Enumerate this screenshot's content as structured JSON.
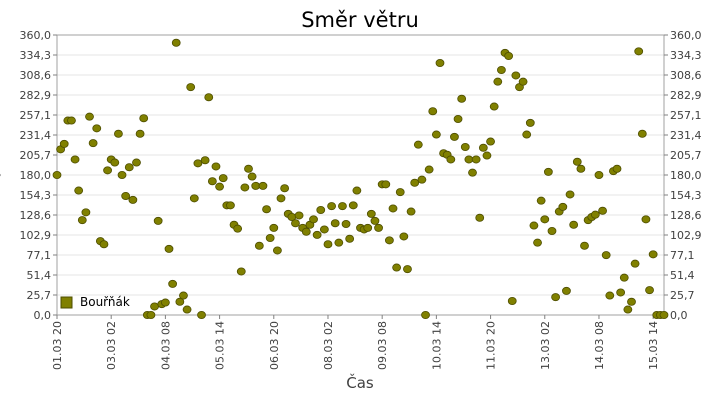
{
  "chart_data": {
    "type": "scatter",
    "title": "Směr větru",
    "xlabel": "Čas",
    "ylabel": "°",
    "ylim": [
      0,
      360
    ],
    "y_ticks": [
      "0,0",
      "25,7",
      "51,4",
      "77,1",
      "102,9",
      "128,6",
      "154,3",
      "180,0",
      "205,7",
      "231,4",
      "257,1",
      "282,9",
      "308,6",
      "334,3",
      "360,0"
    ],
    "x_range": [
      "01.03 20:00",
      "15.03 20:00"
    ],
    "x_ticks": [
      "01.03 20",
      "03.03 02",
      "04.03 08",
      "05.03 14",
      "06.03 20",
      "08.03 02",
      "09.03 08",
      "10.03 14",
      "11.03 20",
      "13.03 02",
      "14.03 08",
      "15.03 14"
    ],
    "grid": true,
    "legend_position": "bottom-left",
    "series": [
      {
        "name": "Bouřňák",
        "color": "#808000",
        "points": [
          {
            "x": "01.03 20:00",
            "y": 180
          },
          {
            "x": "01.03 22:00",
            "y": 213
          },
          {
            "x": "02.03 00:00",
            "y": 220
          },
          {
            "x": "02.03 02:00",
            "y": 250
          },
          {
            "x": "02.03 04:00",
            "y": 250
          },
          {
            "x": "02.03 06:00",
            "y": 200
          },
          {
            "x": "02.03 08:00",
            "y": 160
          },
          {
            "x": "02.03 10:00",
            "y": 122
          },
          {
            "x": "02.03 12:00",
            "y": 132
          },
          {
            "x": "02.03 14:00",
            "y": 255
          },
          {
            "x": "02.03 16:00",
            "y": 221
          },
          {
            "x": "02.03 18:00",
            "y": 240
          },
          {
            "x": "02.03 20:00",
            "y": 95
          },
          {
            "x": "02.03 22:00",
            "y": 91
          },
          {
            "x": "03.03 00:00",
            "y": 186
          },
          {
            "x": "03.03 02:00",
            "y": 200
          },
          {
            "x": "03.03 04:00",
            "y": 196
          },
          {
            "x": "03.03 06:00",
            "y": 233
          },
          {
            "x": "03.03 08:00",
            "y": 180
          },
          {
            "x": "03.03 10:00",
            "y": 153
          },
          {
            "x": "03.03 12:00",
            "y": 190
          },
          {
            "x": "03.03 14:00",
            "y": 148
          },
          {
            "x": "03.03 16:00",
            "y": 196
          },
          {
            "x": "03.03 18:00",
            "y": 233
          },
          {
            "x": "03.03 20:00",
            "y": 253
          },
          {
            "x": "03.03 22:00",
            "y": 0
          },
          {
            "x": "04.03 00:00",
            "y": 0
          },
          {
            "x": "04.03 02:00",
            "y": 11
          },
          {
            "x": "04.03 04:00",
            "y": 121
          },
          {
            "x": "04.03 06:00",
            "y": 14
          },
          {
            "x": "04.03 08:00",
            "y": 16
          },
          {
            "x": "04.03 10:00",
            "y": 85
          },
          {
            "x": "04.03 12:00",
            "y": 40
          },
          {
            "x": "04.03 14:00",
            "y": 350
          },
          {
            "x": "04.03 16:00",
            "y": 17
          },
          {
            "x": "04.03 18:00",
            "y": 25
          },
          {
            "x": "04.03 20:00",
            "y": 7
          },
          {
            "x": "04.03 22:00",
            "y": 293
          },
          {
            "x": "05.03 00:00",
            "y": 150
          },
          {
            "x": "05.03 02:00",
            "y": 195
          },
          {
            "x": "05.03 04:00",
            "y": 0
          },
          {
            "x": "05.03 06:00",
            "y": 199
          },
          {
            "x": "05.03 08:00",
            "y": 280
          },
          {
            "x": "05.03 10:00",
            "y": 172
          },
          {
            "x": "05.03 12:00",
            "y": 191
          },
          {
            "x": "05.03 14:00",
            "y": 165
          },
          {
            "x": "05.03 16:00",
            "y": 176
          },
          {
            "x": "05.03 18:00",
            "y": 141
          },
          {
            "x": "05.03 20:00",
            "y": 141
          },
          {
            "x": "05.03 22:00",
            "y": 116
          },
          {
            "x": "06.03 00:00",
            "y": 111
          },
          {
            "x": "06.03 02:00",
            "y": 56
          },
          {
            "x": "06.03 04:00",
            "y": 164
          },
          {
            "x": "06.03 06:00",
            "y": 188
          },
          {
            "x": "06.03 08:00",
            "y": 178
          },
          {
            "x": "06.03 10:00",
            "y": 166
          },
          {
            "x": "06.03 12:00",
            "y": 89
          },
          {
            "x": "06.03 14:00",
            "y": 166
          },
          {
            "x": "06.03 16:00",
            "y": 136
          },
          {
            "x": "06.03 18:00",
            "y": 99
          },
          {
            "x": "06.03 20:00",
            "y": 112
          },
          {
            "x": "06.03 22:00",
            "y": 83
          },
          {
            "x": "07.03 00:00",
            "y": 150
          },
          {
            "x": "07.03 02:00",
            "y": 163
          },
          {
            "x": "07.03 04:00",
            "y": 130
          },
          {
            "x": "07.03 06:00",
            "y": 126
          },
          {
            "x": "07.03 08:00",
            "y": 118
          },
          {
            "x": "07.03 10:00",
            "y": 128
          },
          {
            "x": "07.03 12:00",
            "y": 112
          },
          {
            "x": "07.03 14:00",
            "y": 107
          },
          {
            "x": "07.03 16:00",
            "y": 116
          },
          {
            "x": "07.03 18:00",
            "y": 123
          },
          {
            "x": "07.03 20:00",
            "y": 103
          },
          {
            "x": "07.03 22:00",
            "y": 135
          },
          {
            "x": "08.03 00:00",
            "y": 110
          },
          {
            "x": "08.03 02:00",
            "y": 91
          },
          {
            "x": "08.03 04:00",
            "y": 140
          },
          {
            "x": "08.03 06:00",
            "y": 118
          },
          {
            "x": "08.03 08:00",
            "y": 93
          },
          {
            "x": "08.03 10:00",
            "y": 140
          },
          {
            "x": "08.03 12:00",
            "y": 117
          },
          {
            "x": "08.03 14:00",
            "y": 98
          },
          {
            "x": "08.03 16:00",
            "y": 141
          },
          {
            "x": "08.03 18:00",
            "y": 160
          },
          {
            "x": "08.03 20:00",
            "y": 112
          },
          {
            "x": "08.03 22:00",
            "y": 110
          },
          {
            "x": "09.03 00:00",
            "y": 112
          },
          {
            "x": "09.03 02:00",
            "y": 130
          },
          {
            "x": "09.03 04:00",
            "y": 121
          },
          {
            "x": "09.03 06:00",
            "y": 112
          },
          {
            "x": "09.03 08:00",
            "y": 168
          },
          {
            "x": "09.03 10:00",
            "y": 168
          },
          {
            "x": "09.03 12:00",
            "y": 96
          },
          {
            "x": "09.03 14:00",
            "y": 137
          },
          {
            "x": "09.03 16:00",
            "y": 61
          },
          {
            "x": "09.03 18:00",
            "y": 158
          },
          {
            "x": "09.03 20:00",
            "y": 101
          },
          {
            "x": "09.03 22:00",
            "y": 59
          },
          {
            "x": "10.03 00:00",
            "y": 133
          },
          {
            "x": "10.03 02:00",
            "y": 170
          },
          {
            "x": "10.03 04:00",
            "y": 219
          },
          {
            "x": "10.03 06:00",
            "y": 174
          },
          {
            "x": "10.03 08:00",
            "y": 0
          },
          {
            "x": "10.03 10:00",
            "y": 187
          },
          {
            "x": "10.03 12:00",
            "y": 262
          },
          {
            "x": "10.03 14:00",
            "y": 232
          },
          {
            "x": "10.03 16:00",
            "y": 324
          },
          {
            "x": "10.03 18:00",
            "y": 208
          },
          {
            "x": "10.03 20:00",
            "y": 206
          },
          {
            "x": "10.03 22:00",
            "y": 200
          },
          {
            "x": "11.03 00:00",
            "y": 229
          },
          {
            "x": "11.03 02:00",
            "y": 252
          },
          {
            "x": "11.03 04:00",
            "y": 278
          },
          {
            "x": "11.03 06:00",
            "y": 216
          },
          {
            "x": "11.03 08:00",
            "y": 200
          },
          {
            "x": "11.03 10:00",
            "y": 183
          },
          {
            "x": "11.03 12:00",
            "y": 200
          },
          {
            "x": "11.03 14:00",
            "y": 125
          },
          {
            "x": "11.03 16:00",
            "y": 215
          },
          {
            "x": "11.03 18:00",
            "y": 205
          },
          {
            "x": "11.03 20:00",
            "y": 223
          },
          {
            "x": "11.03 22:00",
            "y": 268
          },
          {
            "x": "12.03 00:00",
            "y": 300
          },
          {
            "x": "12.03 02:00",
            "y": 315
          },
          {
            "x": "12.03 04:00",
            "y": 337
          },
          {
            "x": "12.03 06:00",
            "y": 333
          },
          {
            "x": "12.03 08:00",
            "y": 18
          },
          {
            "x": "12.03 10:00",
            "y": 308
          },
          {
            "x": "12.03 12:00",
            "y": 293
          },
          {
            "x": "12.03 14:00",
            "y": 300
          },
          {
            "x": "12.03 16:00",
            "y": 232
          },
          {
            "x": "12.03 18:00",
            "y": 247
          },
          {
            "x": "12.03 20:00",
            "y": 115
          },
          {
            "x": "12.03 22:00",
            "y": 93
          },
          {
            "x": "13.03 00:00",
            "y": 147
          },
          {
            "x": "13.03 02:00",
            "y": 123
          },
          {
            "x": "13.03 04:00",
            "y": 184
          },
          {
            "x": "13.03 06:00",
            "y": 108
          },
          {
            "x": "13.03 08:00",
            "y": 23
          },
          {
            "x": "13.03 10:00",
            "y": 133
          },
          {
            "x": "13.03 12:00",
            "y": 139
          },
          {
            "x": "13.03 14:00",
            "y": 31
          },
          {
            "x": "13.03 16:00",
            "y": 155
          },
          {
            "x": "13.03 18:00",
            "y": 116
          },
          {
            "x": "13.03 20:00",
            "y": 197
          },
          {
            "x": "13.03 22:00",
            "y": 188
          },
          {
            "x": "14.03 00:00",
            "y": 89
          },
          {
            "x": "14.03 02:00",
            "y": 122
          },
          {
            "x": "14.03 04:00",
            "y": 126
          },
          {
            "x": "14.03 06:00",
            "y": 129
          },
          {
            "x": "14.03 08:00",
            "y": 180
          },
          {
            "x": "14.03 10:00",
            "y": 134
          },
          {
            "x": "14.03 12:00",
            "y": 77
          },
          {
            "x": "14.03 14:00",
            "y": 25
          },
          {
            "x": "14.03 16:00",
            "y": 185
          },
          {
            "x": "14.03 18:00",
            "y": 188
          },
          {
            "x": "14.03 20:00",
            "y": 29
          },
          {
            "x": "14.03 22:00",
            "y": 48
          },
          {
            "x": "15.03 00:00",
            "y": 7
          },
          {
            "x": "15.03 02:00",
            "y": 17
          },
          {
            "x": "15.03 04:00",
            "y": 66
          },
          {
            "x": "15.03 06:00",
            "y": 339
          },
          {
            "x": "15.03 08:00",
            "y": 233
          },
          {
            "x": "15.03 10:00",
            "y": 123
          },
          {
            "x": "15.03 12:00",
            "y": 32
          },
          {
            "x": "15.03 14:00",
            "y": 78
          },
          {
            "x": "15.03 16:00",
            "y": 0
          },
          {
            "x": "15.03 18:00",
            "y": 0
          },
          {
            "x": "15.03 20:00",
            "y": 0
          }
        ]
      }
    ]
  }
}
